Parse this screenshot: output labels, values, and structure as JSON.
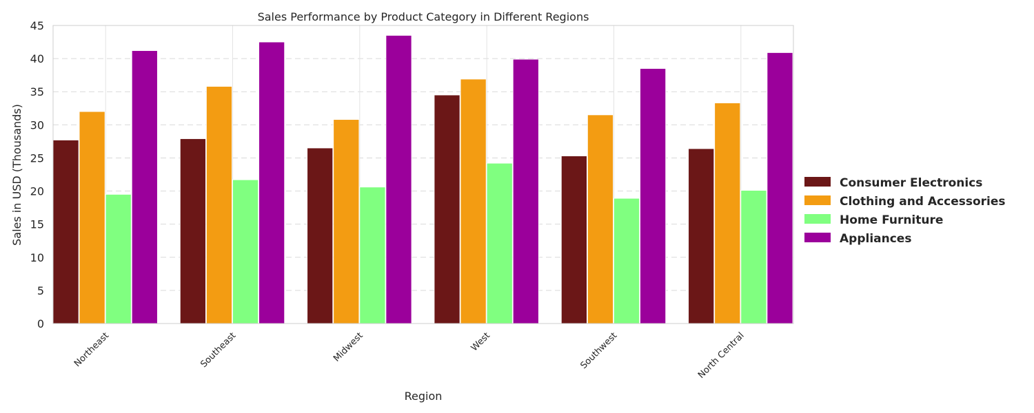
{
  "chart_data": {
    "type": "bar",
    "title": "Sales Performance by Product Category in Different Regions",
    "xlabel": "Region",
    "ylabel": "Sales in USD (Thousands)",
    "ylim": [
      0,
      45
    ],
    "yticks": [
      "0",
      "5",
      "10",
      "15",
      "20",
      "25",
      "30",
      "35",
      "40",
      "45"
    ],
    "categories": [
      "Northeast",
      "Southeast",
      "Midwest",
      "West",
      "Southwest",
      "North Central"
    ],
    "grid": "y-dashed",
    "legend_position": "right",
    "series": [
      {
        "name": "Consumer Electronics",
        "color": "#6b1717",
        "values": [
          27.7,
          27.9,
          26.5,
          34.5,
          25.3,
          26.4
        ]
      },
      {
        "name": "Clothing and Accessories",
        "color": "#f39c12",
        "values": [
          32.0,
          35.8,
          30.8,
          36.9,
          31.5,
          33.3
        ]
      },
      {
        "name": "Home Furniture",
        "color": "#80ff80",
        "values": [
          19.5,
          21.7,
          20.6,
          24.2,
          18.9,
          20.1
        ]
      },
      {
        "name": "Appliances",
        "color": "#9b009b",
        "values": [
          41.2,
          42.5,
          43.5,
          39.9,
          38.5,
          40.9
        ]
      }
    ]
  }
}
